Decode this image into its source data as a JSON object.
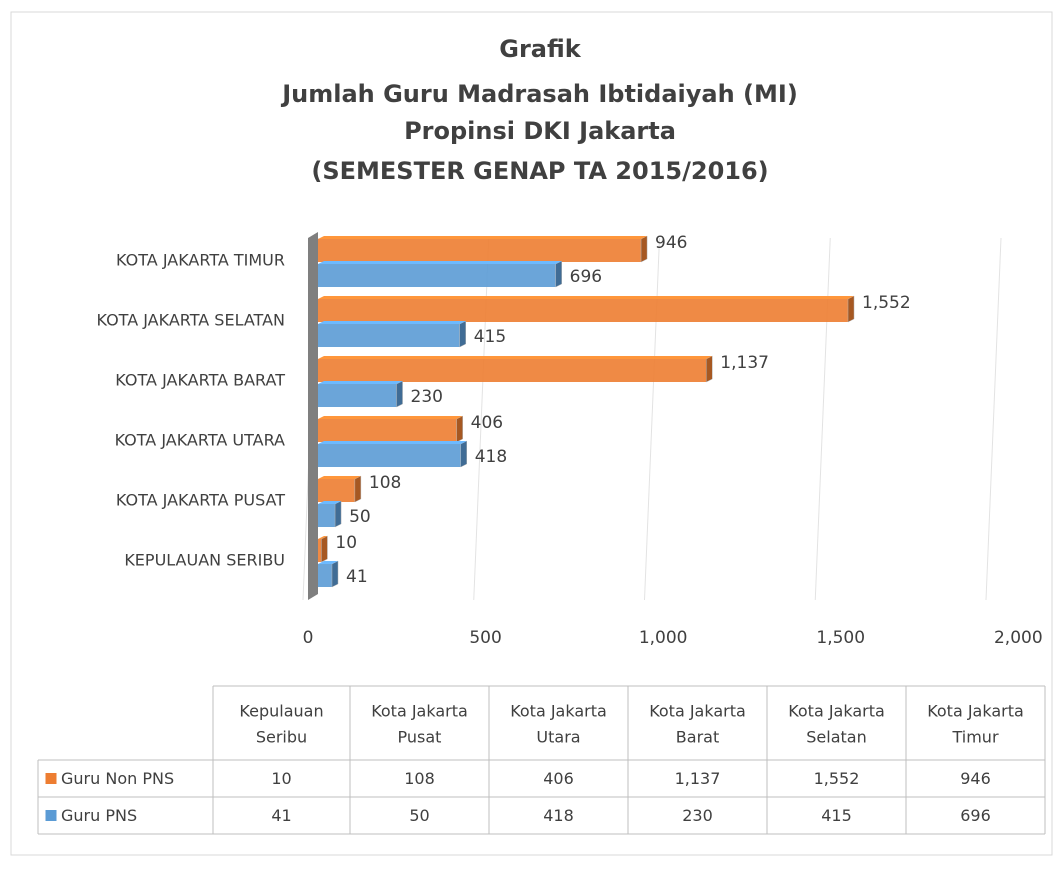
{
  "chart_data": {
    "type": "bar",
    "orientation": "horizontal",
    "title": [
      "Grafik",
      "Jumlah Guru Madrasah Ibtidaiyah (MI)",
      "Propinsi DKI Jakarta",
      "(SEMESTER GENAP TA 2015/2016)"
    ],
    "categories": [
      "KEPULAUAN SERIBU",
      "KOTA JAKARTA PUSAT",
      "KOTA JAKARTA UTARA",
      "KOTA JAKARTA BARAT",
      "KOTA JAKARTA SELATAN",
      "KOTA JAKARTA TIMUR"
    ],
    "series": [
      {
        "name": "Guru Non PNS",
        "color": "#ED7D31",
        "values": [
          10,
          108,
          406,
          1137,
          1552,
          946
        ],
        "value_labels": [
          "10",
          "108",
          "406",
          "1,137",
          "1,552",
          "946"
        ]
      },
      {
        "name": "Guru PNS",
        "color": "#5B9BD5",
        "values": [
          41,
          50,
          418,
          230,
          415,
          696
        ],
        "value_labels": [
          "41",
          "50",
          "418",
          "230",
          "415",
          "696"
        ]
      }
    ],
    "xlim": [
      0,
      2000
    ],
    "xticks": [
      0,
      500,
      {
        "value": 1000,
        "label": "1,000"
      },
      {
        "value": 1500,
        "label": "1,500"
      },
      {
        "value": 2000,
        "label": "2,000"
      }
    ],
    "grid": true,
    "table": {
      "columns": [
        [
          "Kepulauan",
          "Seribu"
        ],
        [
          "Kota Jakarta",
          "Pusat"
        ],
        [
          "Kota Jakarta",
          "Utara"
        ],
        [
          "Kota Jakarta",
          "Barat"
        ],
        [
          "Kota Jakarta",
          "Selatan"
        ],
        [
          "Kota Jakarta",
          "Timur"
        ]
      ]
    }
  }
}
